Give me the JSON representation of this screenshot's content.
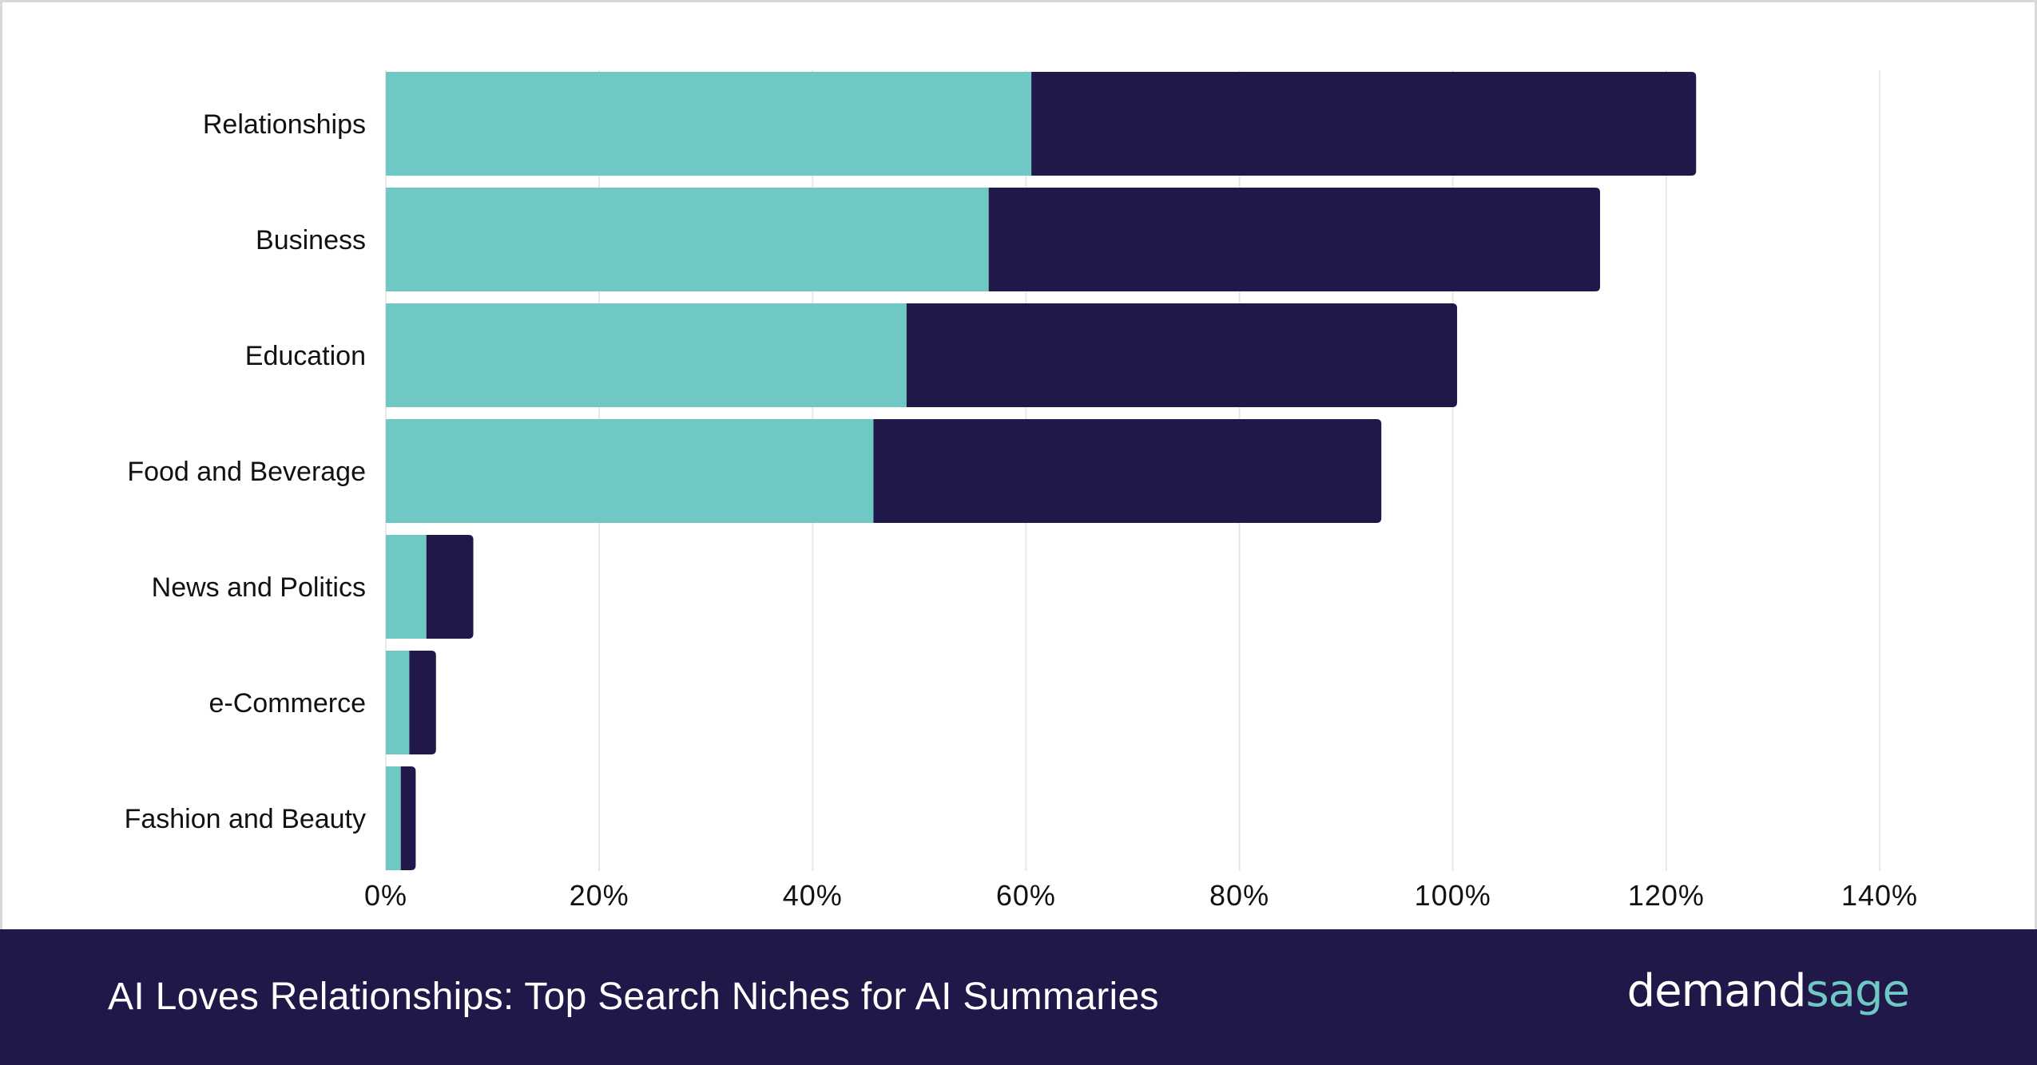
{
  "chart_data": {
    "type": "bar",
    "orientation": "horizontal",
    "stacked": true,
    "categories": [
      "Relationships",
      "Business",
      "Education",
      "Food and Beverage",
      "News and Politics",
      "e-Commerce",
      "Fashion and Beauty"
    ],
    "series": [
      {
        "values": [
          60.5,
          56.5,
          48.8,
          45.7,
          3.8,
          2.2,
          1.4
        ],
        "color": "#6fc8c3"
      },
      {
        "values": [
          62.3,
          57.3,
          51.6,
          47.6,
          4.4,
          2.5,
          1.4
        ],
        "color": "#1f1848"
      }
    ],
    "xlim": [
      0,
      140
    ],
    "xticks": [
      "0%",
      "20%",
      "40%",
      "60%",
      "80%",
      "100%",
      "120%",
      "140%"
    ],
    "grid": true
  },
  "footer": {
    "title": "AI Loves Relationships: Top Search Niches for AI Summaries",
    "brand_part1": "demand",
    "brand_part2": "sage"
  }
}
